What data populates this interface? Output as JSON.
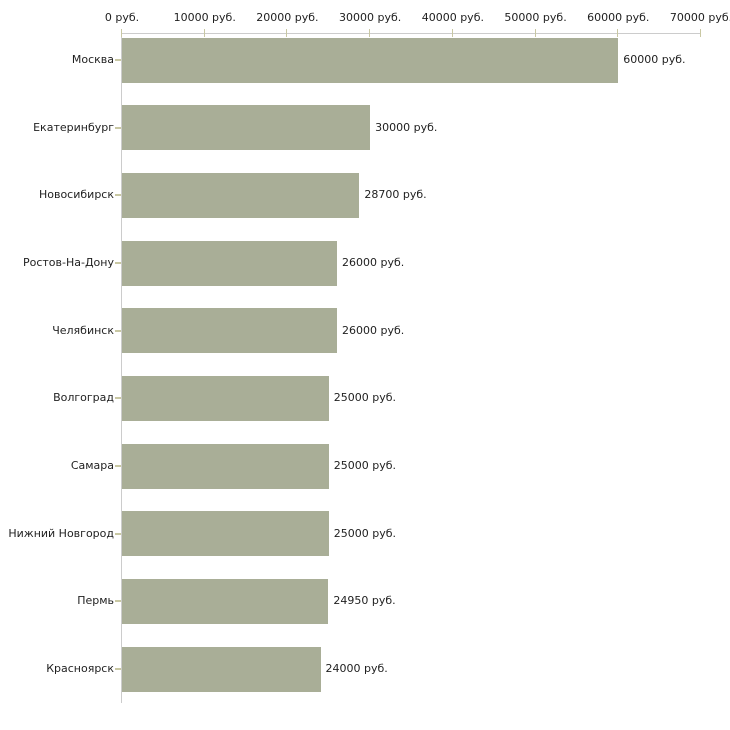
{
  "chart": {
    "bar_color": "#a9ae97",
    "axis_line_color": "#cccccc",
    "tick_color": "#c9c8a3",
    "text_color": "#1f1f1f",
    "background_color": "#ffffff"
  },
  "chart_data": {
    "type": "bar",
    "orientation": "horizontal",
    "title": "",
    "xlabel": "",
    "ylabel": "",
    "categories": [
      "Москва",
      "Екатеринбург",
      "Новосибирск",
      "Ростов-На-Дону",
      "Челябинск",
      "Волгоград",
      "Самара",
      "Нижний Новгород",
      "Пермь",
      "Красноярск"
    ],
    "values": [
      60000,
      30000,
      28700,
      26000,
      26000,
      25000,
      25000,
      25000,
      24950,
      24000
    ],
    "value_labels": [
      "60000 руб.",
      "30000 руб.",
      "28700 руб.",
      "26000 руб.",
      "26000 руб.",
      "25000 руб.",
      "25000 руб.",
      "25000 руб.",
      "24950 руб.",
      "24000 руб."
    ],
    "x_ticks": [
      0,
      10000,
      20000,
      30000,
      40000,
      50000,
      60000,
      70000
    ],
    "x_tick_labels": [
      "0 руб.",
      "10000 руб.",
      "20000 руб.",
      "30000 руб.",
      "40000 руб.",
      "50000 руб.",
      "60000 руб.",
      "70000 руб."
    ],
    "xlim": [
      0,
      70000
    ],
    "axis_position": "top",
    "grid": false,
    "legend": null,
    "value_label_position": "right-of-bar"
  }
}
